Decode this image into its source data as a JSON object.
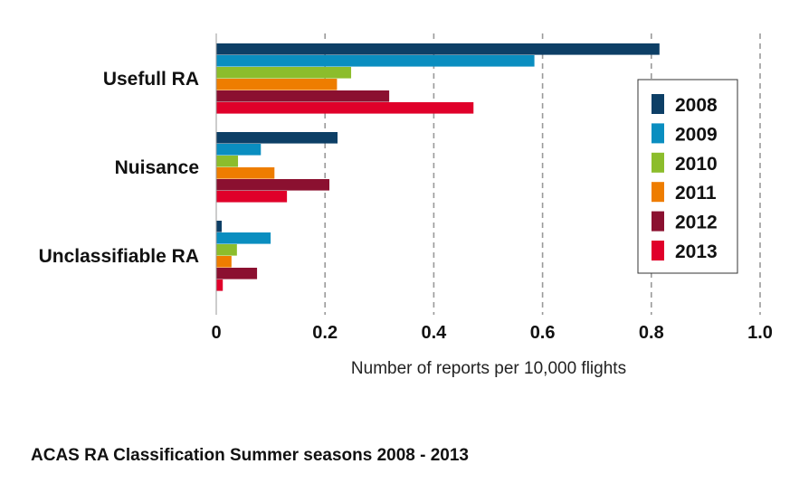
{
  "chart_data": {
    "type": "bar",
    "orientation": "horizontal",
    "title": "ACAS RA Classification Summer seasons 2008 - 2013",
    "xlabel": "Number of reports per 10,000 flights",
    "ylabel": "",
    "xlim": [
      0,
      1.0
    ],
    "xticks": [
      "0",
      "0.2",
      "0.4",
      "0.6",
      "0.8",
      "1.0"
    ],
    "grid": "vertical dashed",
    "legend_position": "right",
    "categories": [
      "Usefull RA",
      "Nuisance",
      "Unclassifiable RA"
    ],
    "series": [
      {
        "name": "2008",
        "color": "#0d3f66",
        "values": [
          0.815,
          0.223,
          0.01
        ]
      },
      {
        "name": "2009",
        "color": "#0a8ec0",
        "values": [
          0.585,
          0.082,
          0.1
        ]
      },
      {
        "name": "2010",
        "color": "#8cbd2c",
        "values": [
          0.248,
          0.04,
          0.038
        ]
      },
      {
        "name": "2011",
        "color": "#ee7d00",
        "values": [
          0.222,
          0.107,
          0.028
        ]
      },
      {
        "name": "2012",
        "color": "#8b1030",
        "values": [
          0.318,
          0.208,
          0.075
        ]
      },
      {
        "name": "2013",
        "color": "#e0002a",
        "values": [
          0.473,
          0.13,
          0.012
        ]
      }
    ]
  }
}
